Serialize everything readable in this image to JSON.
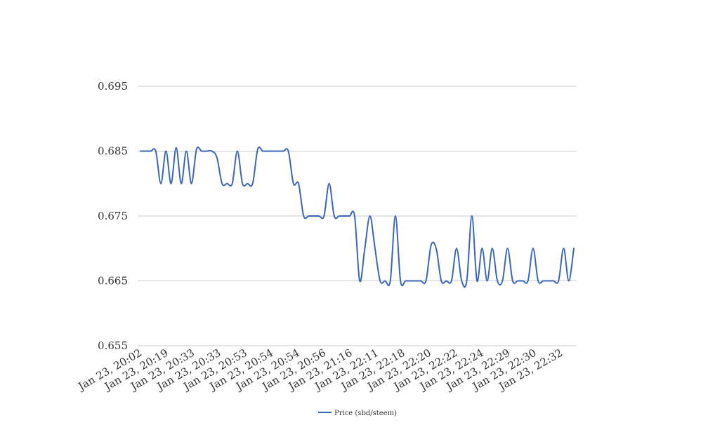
{
  "chart_data": {
    "type": "line",
    "title": "",
    "xlabel": "",
    "ylabel": "",
    "ylim": [
      0.655,
      0.695
    ],
    "yticks": [
      "0.695",
      "0.685",
      "0.675",
      "0.665",
      "0.655"
    ],
    "grid": true,
    "legend_position": "bottom-center",
    "xtick_labels": [
      "Jan 23, 20:02",
      "Jan 23, 20:19",
      "Jan 23, 20:33",
      "Jan 23, 20:33",
      "Jan 23, 20:53",
      "Jan 23, 20:54",
      "Jan 23, 20:54",
      "Jan 23, 20:56",
      "Jan 23, 21:16",
      "Jan 23, 22:11",
      "Jan 23, 22:18",
      "Jan 23, 22:20",
      "Jan 23, 22:22",
      "Jan 23, 22:24",
      "Jan 23, 22:29",
      "Jan 23, 22:30",
      "Jan 23, 22:32"
    ],
    "series": [
      {
        "name": "Price (sbd/steem)",
        "color": "#3a66b7",
        "values": [
          0.685,
          0.685,
          0.685,
          0.685,
          0.68,
          0.685,
          0.68,
          0.6855,
          0.68,
          0.685,
          0.68,
          0.6853,
          0.685,
          0.685,
          0.685,
          0.684,
          0.68,
          0.68,
          0.68,
          0.685,
          0.68,
          0.68,
          0.68,
          0.6853,
          0.685,
          0.685,
          0.685,
          0.685,
          0.685,
          0.685,
          0.68,
          0.68,
          0.675,
          0.675,
          0.675,
          0.675,
          0.675,
          0.68,
          0.675,
          0.675,
          0.675,
          0.675,
          0.675,
          0.665,
          0.67,
          0.675,
          0.67,
          0.665,
          0.665,
          0.665,
          0.675,
          0.665,
          0.665,
          0.665,
          0.665,
          0.665,
          0.665,
          0.6705,
          0.67,
          0.665,
          0.665,
          0.665,
          0.67,
          0.665,
          0.665,
          0.675,
          0.665,
          0.67,
          0.665,
          0.67,
          0.665,
          0.665,
          0.67,
          0.665,
          0.665,
          0.665,
          0.665,
          0.67,
          0.665,
          0.665,
          0.665,
          0.665,
          0.665,
          0.67,
          0.665,
          0.67
        ]
      }
    ]
  }
}
